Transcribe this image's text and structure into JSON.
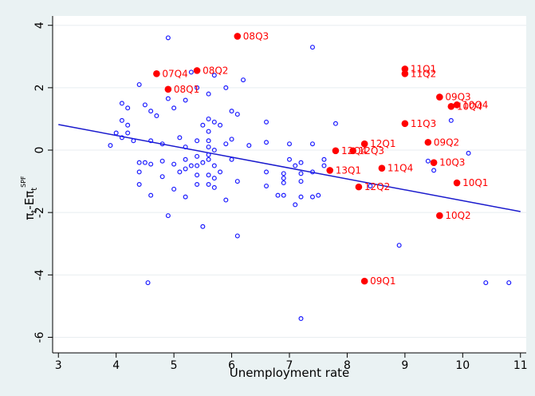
{
  "chart_data": {
    "type": "scatter",
    "xlabel": "Unemployment rate",
    "ylabel": {
      "parts": [
        "π",
        "t",
        "-E",
        "π",
        "t",
        "SPF"
      ]
    },
    "xlim": [
      2.9,
      11.1
    ],
    "ylim": [
      -6.5,
      4.3
    ],
    "xticks": [
      3,
      4,
      5,
      6,
      7,
      8,
      9,
      10,
      11
    ],
    "yticks": [
      -6,
      -4,
      -2,
      0,
      2,
      4
    ],
    "grid": "horizontal",
    "colors": {
      "hollow": "#1a1aff",
      "solid": "#ff0000",
      "line": "#1a1acd"
    },
    "fit_line": {
      "x": [
        3,
        11
      ],
      "y": [
        0.82,
        -1.97
      ]
    },
    "hollow_points": [
      [
        3.9,
        0.15
      ],
      [
        4.0,
        0.55
      ],
      [
        4.1,
        1.5
      ],
      [
        4.1,
        0.95
      ],
      [
        4.1,
        0.4
      ],
      [
        4.2,
        1.35
      ],
      [
        4.2,
        0.8
      ],
      [
        4.2,
        0.55
      ],
      [
        4.3,
        0.3
      ],
      [
        4.4,
        2.1
      ],
      [
        4.4,
        -0.4
      ],
      [
        4.4,
        -0.7
      ],
      [
        4.4,
        -1.1
      ],
      [
        4.5,
        1.45
      ],
      [
        4.5,
        -0.4
      ],
      [
        4.55,
        -4.25
      ],
      [
        4.6,
        1.25
      ],
      [
        4.6,
        0.3
      ],
      [
        4.6,
        -0.45
      ],
      [
        4.6,
        -1.45
      ],
      [
        4.7,
        1.1
      ],
      [
        4.8,
        0.2
      ],
      [
        4.8,
        -0.35
      ],
      [
        4.8,
        -0.85
      ],
      [
        4.9,
        3.6
      ],
      [
        4.9,
        1.65
      ],
      [
        4.9,
        -2.1
      ],
      [
        5.0,
        1.35
      ],
      [
        5.0,
        -0.45
      ],
      [
        5.0,
        -1.25
      ],
      [
        5.1,
        0.4
      ],
      [
        5.1,
        -0.7
      ],
      [
        5.2,
        1.6
      ],
      [
        5.2,
        0.1
      ],
      [
        5.2,
        -0.3
      ],
      [
        5.2,
        -0.6
      ],
      [
        5.2,
        -1.5
      ],
      [
        5.3,
        2.5
      ],
      [
        5.3,
        -0.5
      ],
      [
        5.4,
        2.0
      ],
      [
        5.4,
        0.3
      ],
      [
        5.4,
        -0.2
      ],
      [
        5.4,
        -0.5
      ],
      [
        5.4,
        -0.8
      ],
      [
        5.4,
        -1.1
      ],
      [
        5.5,
        0.8
      ],
      [
        5.5,
        -0.4
      ],
      [
        5.5,
        -2.45
      ],
      [
        5.6,
        1.8
      ],
      [
        5.6,
        1.0
      ],
      [
        5.6,
        0.6
      ],
      [
        5.6,
        0.3
      ],
      [
        5.6,
        0.1
      ],
      [
        5.6,
        -0.15
      ],
      [
        5.6,
        -0.3
      ],
      [
        5.6,
        -0.8
      ],
      [
        5.6,
        -1.1
      ],
      [
        5.7,
        2.4
      ],
      [
        5.7,
        0.9
      ],
      [
        5.7,
        0.0
      ],
      [
        5.7,
        -0.5
      ],
      [
        5.7,
        -0.9
      ],
      [
        5.7,
        -1.2
      ],
      [
        5.8,
        0.8
      ],
      [
        5.8,
        -0.7
      ],
      [
        5.9,
        2.0
      ],
      [
        5.9,
        0.2
      ],
      [
        5.9,
        -1.6
      ],
      [
        6.0,
        1.25
      ],
      [
        6.0,
        0.35
      ],
      [
        6.0,
        -0.3
      ],
      [
        6.1,
        1.15
      ],
      [
        6.1,
        -1.0
      ],
      [
        6.1,
        -2.75
      ],
      [
        6.2,
        2.25
      ],
      [
        6.3,
        0.15
      ],
      [
        6.6,
        0.9
      ],
      [
        6.6,
        0.25
      ],
      [
        6.6,
        -0.7
      ],
      [
        6.6,
        -1.15
      ],
      [
        6.8,
        -1.45
      ],
      [
        6.9,
        -0.75
      ],
      [
        6.9,
        -0.9
      ],
      [
        6.9,
        -1.05
      ],
      [
        6.9,
        -1.45
      ],
      [
        7.0,
        0.2
      ],
      [
        7.0,
        -0.3
      ],
      [
        7.1,
        -0.5
      ],
      [
        7.1,
        -1.75
      ],
      [
        7.2,
        -0.4
      ],
      [
        7.2,
        -0.75
      ],
      [
        7.2,
        -1.0
      ],
      [
        7.2,
        -1.5
      ],
      [
        7.2,
        -5.4
      ],
      [
        7.4,
        3.3
      ],
      [
        7.4,
        0.2
      ],
      [
        7.4,
        -0.7
      ],
      [
        7.4,
        -1.5
      ],
      [
        7.5,
        -1.45
      ],
      [
        7.6,
        -0.3
      ],
      [
        7.6,
        -0.5
      ],
      [
        7.8,
        0.85
      ],
      [
        8.4,
        -1.15
      ],
      [
        8.9,
        -3.05
      ],
      [
        9.4,
        -0.35
      ],
      [
        9.5,
        -0.65
      ],
      [
        9.8,
        0.95
      ],
      [
        10.1,
        -0.1
      ],
      [
        10.4,
        -4.25
      ],
      [
        10.8,
        -4.25
      ]
    ],
    "labeled_points": [
      {
        "label": "08Q3",
        "x": 6.1,
        "y": 3.65
      },
      {
        "label": "07Q4",
        "x": 4.7,
        "y": 2.45
      },
      {
        "label": "08Q2",
        "x": 5.4,
        "y": 2.55
      },
      {
        "label": "08Q1",
        "x": 4.9,
        "y": 1.95
      },
      {
        "label": "11Q1",
        "x": 9.0,
        "y": 2.6
      },
      {
        "label": "11Q2",
        "x": 9.0,
        "y": 2.45
      },
      {
        "label": "09Q3",
        "x": 9.6,
        "y": 1.7
      },
      {
        "label": "10Q4",
        "x": 9.9,
        "y": 1.45
      },
      {
        "label": "10Q4",
        "x": 9.8,
        "y": 1.4
      },
      {
        "label": "11Q3",
        "x": 9.0,
        "y": 0.85
      },
      {
        "label": "12Q1",
        "x": 8.3,
        "y": 0.2
      },
      {
        "label": "12Q4",
        "x": 7.8,
        "y": -0.02
      },
      {
        "label": "12Q3",
        "x": 8.1,
        "y": -0.02
      },
      {
        "label": "09Q2",
        "x": 9.4,
        "y": 0.25
      },
      {
        "label": "10Q3",
        "x": 9.5,
        "y": -0.4
      },
      {
        "label": "13Q1",
        "x": 7.7,
        "y": -0.65
      },
      {
        "label": "11Q4",
        "x": 8.6,
        "y": -0.58
      },
      {
        "label": "12Q2",
        "x": 8.2,
        "y": -1.18
      },
      {
        "label": "10Q1",
        "x": 9.9,
        "y": -1.05
      },
      {
        "label": "10Q2",
        "x": 9.6,
        "y": -2.1
      },
      {
        "label": "09Q1",
        "x": 8.3,
        "y": -4.2
      }
    ]
  }
}
